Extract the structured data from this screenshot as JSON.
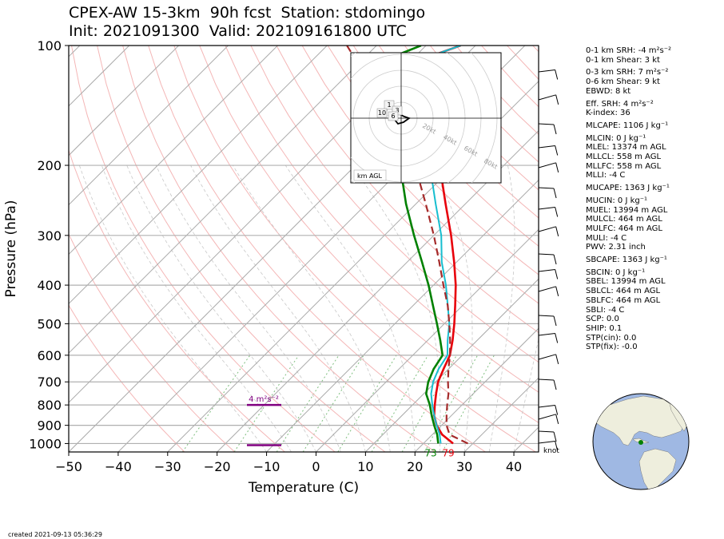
{
  "title_line1": "CPEX-AW 15-3km  90h fcst  Station: stdomingo",
  "title_line2": "Init: 2021091300  Valid: 202109161800 UTC",
  "created": "created 2021-09-13 05:36:29",
  "knot_label": "knot",
  "colors": {
    "temperature": "#e8000b",
    "dewpoint": "#008000",
    "wetbulb": "#17becf",
    "parcel": "#a52a2a",
    "srh_bar": "#800080",
    "isotherm": "#aaaaaa",
    "dry_adiabat": "#f4b6b6",
    "moist_adiabat": "#c8c8c8",
    "mixing_ratio": "#7fbf7f"
  },
  "chart_data": {
    "type": "skew-t",
    "xlabel": "Temperature (C)",
    "ylabel": "Pressure (hPa)",
    "xlim": [
      -50,
      45
    ],
    "ylim": [
      1050,
      100
    ],
    "x_ticks": [
      -50,
      -40,
      -30,
      -20,
      -10,
      0,
      10,
      20,
      30,
      40
    ],
    "y_ticks": [
      100,
      200,
      300,
      400,
      500,
      600,
      700,
      800,
      900,
      1000
    ],
    "grid": true,
    "surface_temp_label": "79",
    "surface_dewpoint_label": "73",
    "srh_annotation": "4 m²s⁻²",
    "series": [
      {
        "key": "temperature",
        "points": [
          [
            1000,
            26
          ],
          [
            950,
            22
          ],
          [
            900,
            19
          ],
          [
            850,
            16.5
          ],
          [
            800,
            14.5
          ],
          [
            750,
            12.5
          ],
          [
            700,
            10.5
          ],
          [
            650,
            9
          ],
          [
            600,
            7.5
          ],
          [
            550,
            5
          ],
          [
            500,
            2
          ],
          [
            450,
            -1.5
          ],
          [
            400,
            -5.5
          ],
          [
            350,
            -10.5
          ],
          [
            300,
            -16.5
          ],
          [
            250,
            -24
          ],
          [
            200,
            -33
          ],
          [
            180,
            -37
          ],
          [
            160,
            -42.5
          ],
          [
            140,
            -49
          ],
          [
            120,
            -56
          ],
          [
            110,
            -59
          ],
          [
            100,
            -53
          ]
        ]
      },
      {
        "key": "wetbulb",
        "points": [
          [
            1000,
            23.5
          ],
          [
            950,
            21.5
          ],
          [
            900,
            19
          ],
          [
            850,
            16.5
          ],
          [
            800,
            14
          ],
          [
            750,
            11.5
          ],
          [
            700,
            9.5
          ],
          [
            650,
            8
          ],
          [
            600,
            7
          ],
          [
            550,
            4
          ],
          [
            500,
            1
          ],
          [
            450,
            -3
          ],
          [
            400,
            -7.5
          ],
          [
            350,
            -13
          ],
          [
            300,
            -18.5
          ],
          [
            250,
            -26
          ],
          [
            200,
            -35
          ],
          [
            180,
            -39
          ],
          [
            160,
            -44
          ],
          [
            140,
            -49.5
          ],
          [
            120,
            -56
          ],
          [
            110,
            -59
          ],
          [
            100,
            -53
          ]
        ]
      },
      {
        "key": "dewpoint",
        "points": [
          [
            1000,
            23
          ],
          [
            950,
            21
          ],
          [
            900,
            18.5
          ],
          [
            850,
            16
          ],
          [
            800,
            13.5
          ],
          [
            750,
            10.5
          ],
          [
            700,
            8.5
          ],
          [
            650,
            7
          ],
          [
            600,
            6
          ],
          [
            550,
            2.5
          ],
          [
            500,
            -1.5
          ],
          [
            450,
            -6
          ],
          [
            400,
            -11
          ],
          [
            350,
            -17
          ],
          [
            300,
            -24
          ],
          [
            250,
            -32
          ],
          [
            200,
            -41
          ],
          [
            180,
            -46
          ],
          [
            160,
            -52
          ],
          [
            140,
            -58
          ],
          [
            120,
            -64
          ],
          [
            110,
            -66
          ],
          [
            100,
            -61
          ]
        ]
      },
      {
        "key": "parcel",
        "points": [
          [
            1000,
            29
          ],
          [
            950,
            23.5
          ],
          [
            900,
            21
          ],
          [
            850,
            19
          ],
          [
            800,
            17
          ],
          [
            750,
            15
          ],
          [
            700,
            12.5
          ],
          [
            650,
            10
          ],
          [
            600,
            7.5
          ],
          [
            550,
            4.5
          ],
          [
            500,
            1
          ],
          [
            450,
            -3
          ],
          [
            400,
            -8
          ],
          [
            350,
            -13.5
          ],
          [
            300,
            -20
          ],
          [
            250,
            -28
          ],
          [
            200,
            -38
          ],
          [
            150,
            -53
          ],
          [
            100,
            -76
          ]
        ]
      }
    ],
    "hodograph": {
      "ring_labels": [
        "20kt",
        "40kt",
        "60kt",
        "80kt"
      ],
      "height_labels": [
        "1",
        "10",
        "3",
        "6"
      ],
      "legend": "km AGL"
    },
    "stats": [
      "0-1 km SRH: -4 m²s⁻²",
      "0-1 km Shear: 3 kt",
      "0-3 km SRH: 7 m²s⁻²",
      "0-6 km Shear: 9 kt",
      "EBWD: 8 kt",
      "Eff. SRH: 4 m²s⁻²",
      "K-index: 36",
      "MLCAPE: 1106 J kg⁻¹",
      "MLCIN: 0 J kg⁻¹",
      "MLEL: 13374 m AGL",
      "MLLCL: 558 m AGL",
      "MLLFC: 558 m AGL",
      "MLLI: -4 C",
      "MUCAPE: 1363 J kg⁻¹",
      "MUCIN: 0 J kg⁻¹",
      "MUEL: 13994 m AGL",
      "MULCL: 464 m AGL",
      "MULFC: 464 m AGL",
      "MULI: -4 C",
      "PWV: 2.31 inch",
      "SBCAPE: 1363 J kg⁻¹",
      "SBCIN: 0 J kg⁻¹",
      "SBEL: 13994 m AGL",
      "SBLCL: 464 m AGL",
      "SBLFC: 464 m AGL",
      "SBLI: -4 C",
      "SCP: 0.0",
      "SHIP: 0.1",
      "STP(cin): 0.0",
      "STP(fix): -0.0"
    ]
  }
}
